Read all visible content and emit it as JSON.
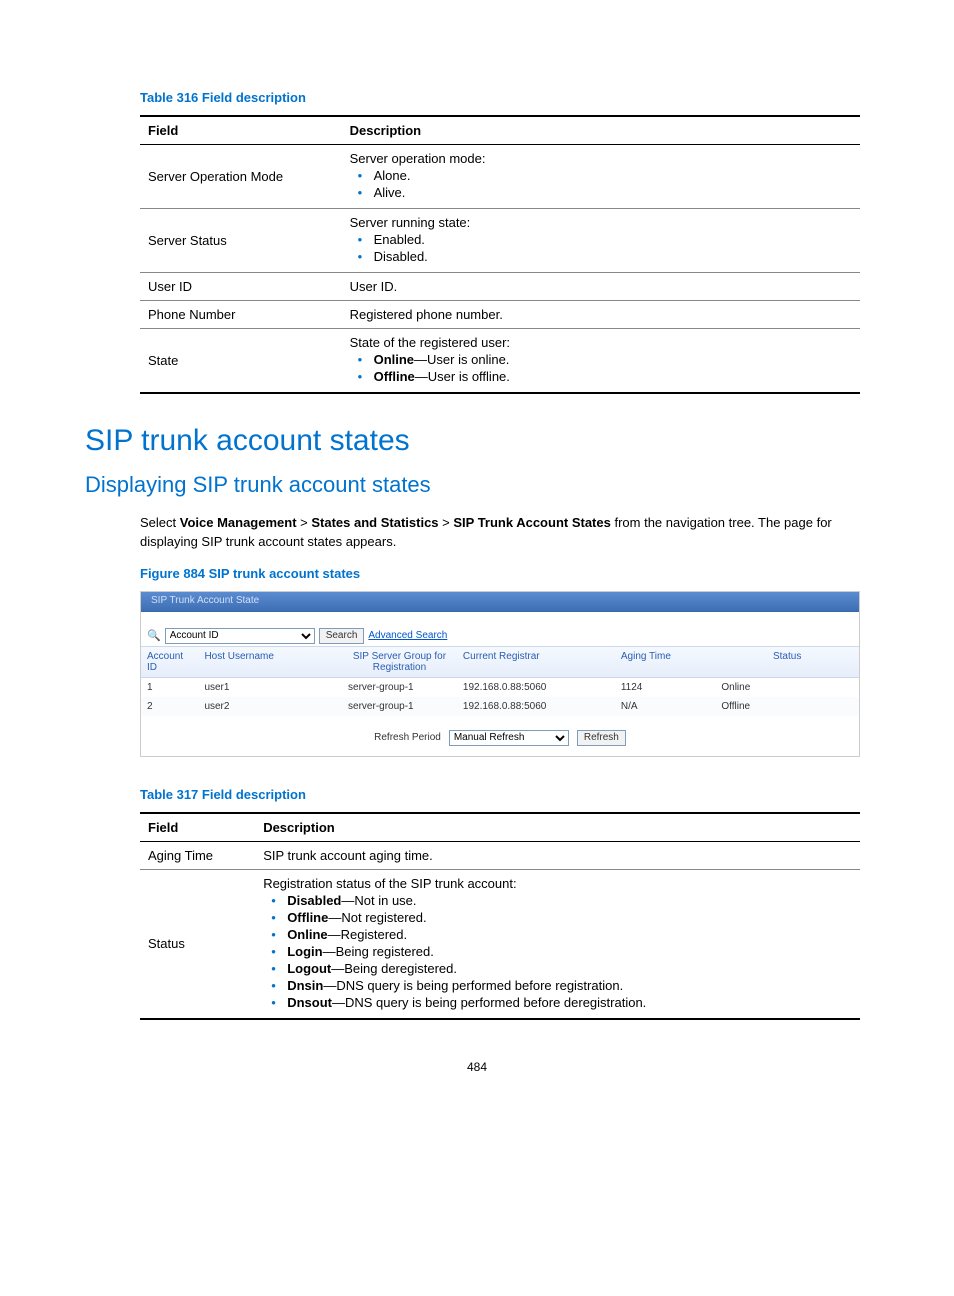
{
  "table316": {
    "caption": "Table 316 Field description",
    "headers": [
      "Field",
      "Description"
    ],
    "col1_width": "28%",
    "rows": [
      {
        "field": "Server Operation Mode",
        "lead": "Server operation mode:",
        "items": [
          {
            "t": "Alone."
          },
          {
            "t": "Alive."
          }
        ]
      },
      {
        "field": "Server Status",
        "lead": "Server running state:",
        "items": [
          {
            "t": "Enabled."
          },
          {
            "t": "Disabled."
          }
        ]
      },
      {
        "field": "User ID",
        "plain": "User ID."
      },
      {
        "field": "Phone Number",
        "plain": "Registered phone number."
      },
      {
        "field": "State",
        "lead": "State of the registered user:",
        "items": [
          {
            "b": "Online",
            "t": "—User is online."
          },
          {
            "b": "Offline",
            "t": "—User is offline."
          }
        ]
      }
    ]
  },
  "h1": "SIP trunk account states",
  "h2": "Displaying SIP trunk account states",
  "para": {
    "pre": "Select ",
    "b1": "Voice Management",
    "s1": " > ",
    "b2": "States and Statistics",
    "s2": " > ",
    "b3": "SIP Trunk Account States",
    "post": " from the navigation tree. The page for displaying SIP trunk account states appears."
  },
  "figcap": "Figure 884 SIP trunk account states",
  "shot": {
    "tab": "SIP Trunk Account State",
    "search_field": "Account ID",
    "search_btn": "Search",
    "adv": "Advanced Search",
    "cols": [
      "Account ID",
      "Host Username",
      "SIP Server Group for Registration",
      "Current Registrar",
      "Aging Time",
      "Status"
    ],
    "rows": [
      [
        "1",
        "user1",
        "server-group-1",
        "192.168.0.88:5060",
        "1124",
        "Online"
      ],
      [
        "2",
        "user2",
        "server-group-1",
        "192.168.0.88:5060",
        "N/A",
        "Offline"
      ]
    ],
    "refresh_label": "Refresh Period",
    "refresh_sel": "Manual Refresh",
    "refresh_btn": "Refresh"
  },
  "table317": {
    "caption": "Table 317 Field description",
    "headers": [
      "Field",
      "Description"
    ],
    "col1_width": "16%",
    "rows": [
      {
        "field": "Aging Time",
        "plain": "SIP trunk account aging time."
      },
      {
        "field": "Status",
        "lead": "Registration status of the SIP trunk account:",
        "items": [
          {
            "b": "Disabled",
            "t": "—Not in use."
          },
          {
            "b": "Offline",
            "t": "—Not registered."
          },
          {
            "b": "Online",
            "t": "—Registered."
          },
          {
            "b": "Login",
            "t": "—Being registered."
          },
          {
            "b": "Logout",
            "t": "—Being deregistered."
          },
          {
            "b": "Dnsin",
            "t": "—DNS query is being performed before registration."
          },
          {
            "b": "Dnsout",
            "t": "—DNS query is being performed before deregistration."
          }
        ]
      }
    ]
  },
  "pagenum": "484"
}
